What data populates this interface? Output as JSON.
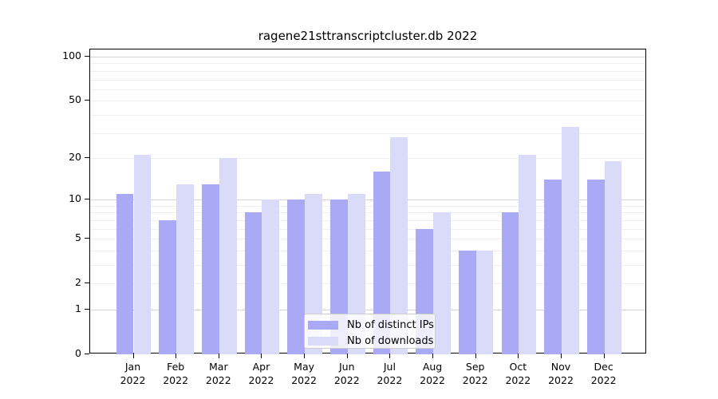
{
  "chart_data": {
    "type": "bar",
    "title": "ragene21sttranscriptcluster.db 2022",
    "categories": [
      "Jan 2022",
      "Feb 2022",
      "Mar 2022",
      "Apr 2022",
      "May 2022",
      "Jun 2022",
      "Jul 2022",
      "Aug 2022",
      "Sep 2022",
      "Oct 2022",
      "Nov 2022",
      "Dec 2022"
    ],
    "series": [
      {
        "name": "Nb of distinct IPs",
        "color": "#a9a9f5",
        "values": [
          11,
          7,
          13,
          8,
          10,
          10,
          16,
          6,
          4,
          8,
          14,
          14
        ]
      },
      {
        "name": "Nb of downloads",
        "color": "#dadaf9",
        "values": [
          21,
          13,
          20,
          10,
          11,
          11,
          28,
          8,
          4,
          21,
          33,
          19
        ]
      }
    ],
    "yscale": "log1p",
    "ylim": [
      0,
      112
    ],
    "y_ticks": [
      0,
      1,
      2,
      5,
      10,
      20,
      50,
      100
    ],
    "grid": {
      "major_lines": [
        1,
        10,
        100
      ],
      "minor_lines": [
        2,
        3,
        4,
        5,
        6,
        7,
        8,
        9,
        20,
        30,
        40,
        50,
        60,
        70,
        80,
        90
      ],
      "major_color": "#d4d4d4",
      "minor_color": "#f0f0f0"
    },
    "legend_position": "lower center",
    "axis_color": "#000000",
    "background_color": "#ffffff"
  }
}
